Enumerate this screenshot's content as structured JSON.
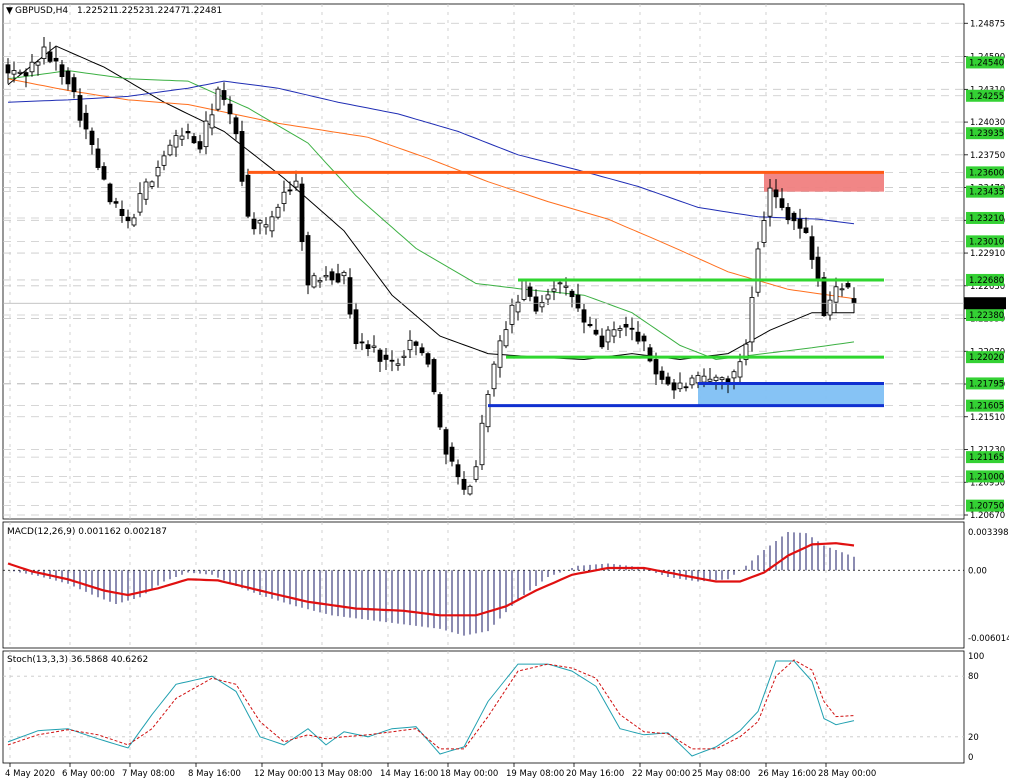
{
  "header": {
    "symbol": "GBPUSD,H4",
    "open": "1.22521",
    "high": "1.22523",
    "low": "1.22477",
    "close": "1.22481"
  },
  "colors": {
    "bull_candle": "#ffffff",
    "bear_candle": "#000000",
    "ma_black": "#000000",
    "ma_green": "#3cb043",
    "ma_orange": "#ff6f1e",
    "ma_blue": "#1f2db4",
    "resistance_line": "#ff5a14",
    "support_green": "#2fd62f",
    "support_blue": "#1030d0",
    "resistance_zone": "#f08080",
    "support_zone": "#80c0f4",
    "label_highlight": "#34d134",
    "macd_hist": "#1a1a66",
    "macd_signal": "#e01010",
    "stoch_main": "#20a0b0",
    "stoch_signal": "#d01010",
    "grid": "#c8c8c8"
  },
  "chart_data": [
    {
      "type": "candlestick",
      "pane": "price",
      "ylim": [
        1.2067,
        1.2492
      ],
      "y_ticks": [
        "1.24875",
        "1.24590",
        "1.24310",
        "1.24030",
        "1.23750",
        "1.23470",
        "1.23190",
        "1.22910",
        "1.22630",
        "1.22350",
        "1.22070",
        "1.21790",
        "1.21510",
        "1.21230",
        "1.20950",
        "1.20670"
      ],
      "highlighted_labels": [
        "1.24540",
        "1.24255",
        "1.23935",
        "1.23600",
        "1.23435",
        "1.23210",
        "1.23010",
        "1.22680",
        "1.22380",
        "1.22020",
        "1.21795",
        "1.21605",
        "1.21165",
        "1.21000",
        "1.20750"
      ],
      "current_price": "1.22481",
      "x_labels": [
        "4 May 2020",
        "6 May 00:00",
        "7 May 08:00",
        "8 May 16:00",
        "12 May 00:00",
        "13 May 08:00",
        "14 May 16:00",
        "18 May 00:00",
        "19 May 08:00",
        "20 May 16:00",
        "22 May 00:00",
        "25 May 08:00",
        "26 May 16:00",
        "28 May 00:00"
      ],
      "levels": [
        {
          "name": "resistance",
          "price": 1.236,
          "x_start_index": 40
        },
        {
          "name": "upper-green",
          "price": 1.2268,
          "x_start_index": 85
        },
        {
          "name": "lower-green",
          "price": 1.2202,
          "x_start_index": 83
        },
        {
          "name": "upper-blue",
          "price": 1.21795,
          "x_start_index": 115
        },
        {
          "name": "lower-blue",
          "price": 1.21605,
          "x_start_index": 80
        }
      ],
      "zones": [
        {
          "name": "resistance-zone",
          "low": 1.23435,
          "high": 1.236,
          "x_start_index": 126
        },
        {
          "name": "support-zone",
          "low": 1.21605,
          "high": 1.21795,
          "x_start_index": 115
        }
      ],
      "anchors": [
        [
          0,
          1.2444
        ],
        [
          3,
          1.2446
        ],
        [
          6,
          1.2463
        ],
        [
          10,
          1.2441
        ],
        [
          14,
          1.238
        ],
        [
          17,
          1.2335
        ],
        [
          20,
          1.2315
        ],
        [
          23,
          1.2348
        ],
        [
          26,
          1.2375
        ],
        [
          29,
          1.2395
        ],
        [
          32,
          1.2382
        ],
        [
          35,
          1.243
        ],
        [
          38,
          1.2395
        ],
        [
          40,
          1.232
        ],
        [
          43,
          1.231
        ],
        [
          46,
          1.2345
        ],
        [
          48,
          1.235
        ],
        [
          50,
          1.2262
        ],
        [
          53,
          1.2275
        ],
        [
          56,
          1.227
        ],
        [
          58,
          1.2215
        ],
        [
          61,
          1.2208
        ],
        [
          64,
          1.2195
        ],
        [
          67,
          1.2215
        ],
        [
          70,
          1.22
        ],
        [
          72,
          1.214
        ],
        [
          74,
          1.211
        ],
        [
          76,
          1.2085
        ],
        [
          78,
          1.211
        ],
        [
          80,
          1.2175
        ],
        [
          83,
          1.223
        ],
        [
          86,
          1.2262
        ],
        [
          88,
          1.2245
        ],
        [
          91,
          1.2265
        ],
        [
          94,
          1.2255
        ],
        [
          96,
          1.223
        ],
        [
          99,
          1.2215
        ],
        [
          102,
          1.223
        ],
        [
          105,
          1.222
        ],
        [
          108,
          1.219
        ],
        [
          111,
          1.2175
        ],
        [
          114,
          1.218
        ],
        [
          117,
          1.2182
        ],
        [
          121,
          1.2185
        ],
        [
          123,
          1.2215
        ],
        [
          125,
          1.23
        ],
        [
          127,
          1.2345
        ],
        [
          129,
          1.233
        ],
        [
          131,
          1.232
        ],
        [
          133,
          1.2305
        ],
        [
          135,
          1.227
        ],
        [
          136,
          1.2238
        ],
        [
          138,
          1.226
        ],
        [
          139,
          1.2265
        ],
        [
          141,
          1.225
        ]
      ],
      "moving_averages": [
        {
          "name": "ma-black",
          "points": [
            [
              0,
              1.2435
            ],
            [
              8,
              1.2468
            ],
            [
              16,
              1.245
            ],
            [
              26,
              1.242
            ],
            [
              36,
              1.2395
            ],
            [
              46,
              1.2355
            ],
            [
              56,
              1.231
            ],
            [
              64,
              1.2255
            ],
            [
              72,
              1.222
            ],
            [
              80,
              1.2205
            ],
            [
              88,
              1.2202
            ],
            [
              96,
              1.22
            ],
            [
              104,
              1.2205
            ],
            [
              112,
              1.22
            ],
            [
              120,
              1.2205
            ],
            [
              127,
              1.2225
            ],
            [
              134,
              1.224
            ],
            [
              141,
              1.224
            ]
          ]
        },
        {
          "name": "ma-green",
          "points": [
            [
              0,
              1.244
            ],
            [
              10,
              1.2447
            ],
            [
              20,
              1.244
            ],
            [
              30,
              1.2438
            ],
            [
              40,
              1.2415
            ],
            [
              50,
              1.2385
            ],
            [
              58,
              1.234
            ],
            [
              68,
              1.2295
            ],
            [
              78,
              1.2265
            ],
            [
              86,
              1.226
            ],
            [
              96,
              1.2255
            ],
            [
              104,
              1.224
            ],
            [
              112,
              1.2212
            ],
            [
              118,
              1.22
            ],
            [
              126,
              1.2205
            ],
            [
              134,
              1.221
            ],
            [
              141,
              1.2215
            ]
          ]
        },
        {
          "name": "ma-orange",
          "points": [
            [
              0,
              1.244
            ],
            [
              10,
              1.243
            ],
            [
              20,
              1.2422
            ],
            [
              30,
              1.2418
            ],
            [
              45,
              1.2402
            ],
            [
              60,
              1.239
            ],
            [
              70,
              1.2372
            ],
            [
              80,
              1.2352
            ],
            [
              90,
              1.2335
            ],
            [
              100,
              1.232
            ],
            [
              110,
              1.2298
            ],
            [
              120,
              1.2275
            ],
            [
              130,
              1.226
            ],
            [
              141,
              1.2252
            ]
          ]
        },
        {
          "name": "ma-blue",
          "points": [
            [
              0,
              1.242
            ],
            [
              10,
              1.2422
            ],
            [
              20,
              1.2425
            ],
            [
              30,
              1.2432
            ],
            [
              36,
              1.2438
            ],
            [
              45,
              1.2432
            ],
            [
              55,
              1.242
            ],
            [
              65,
              1.241
            ],
            [
              75,
              1.2395
            ],
            [
              85,
              1.2375
            ],
            [
              95,
              1.2362
            ],
            [
              105,
              1.2348
            ],
            [
              115,
              1.233
            ],
            [
              125,
              1.2322
            ],
            [
              135,
              1.232
            ],
            [
              141,
              1.2316
            ]
          ]
        }
      ]
    },
    {
      "type": "histogram+line",
      "pane": "macd",
      "title": "MACD(12,26,9) 0.001162 0.002187",
      "ylim": [
        -0.006014,
        0.003398
      ],
      "y_ticks": [
        "0.003398",
        "0.00",
        "-0.006014"
      ],
      "hist_anchors": [
        [
          0,
          0.0
        ],
        [
          5,
          -0.0005
        ],
        [
          10,
          -0.0012
        ],
        [
          15,
          -0.0024
        ],
        [
          18,
          -0.003
        ],
        [
          22,
          -0.0024
        ],
        [
          26,
          -0.001
        ],
        [
          30,
          -0.0002
        ],
        [
          34,
          -0.0004
        ],
        [
          38,
          -0.0014
        ],
        [
          42,
          -0.0022
        ],
        [
          48,
          -0.0032
        ],
        [
          54,
          -0.004
        ],
        [
          60,
          -0.0044
        ],
        [
          66,
          -0.0048
        ],
        [
          72,
          -0.0052
        ],
        [
          76,
          -0.0058
        ],
        [
          80,
          -0.0054
        ],
        [
          85,
          -0.0026
        ],
        [
          90,
          -0.0006
        ],
        [
          95,
          0.0004
        ],
        [
          100,
          0.0006
        ],
        [
          105,
          0.0003
        ],
        [
          110,
          -0.0006
        ],
        [
          115,
          -0.001
        ],
        [
          120,
          -0.0008
        ],
        [
          123,
          0.0004
        ],
        [
          126,
          0.0018
        ],
        [
          130,
          0.0034
        ],
        [
          133,
          0.0033
        ],
        [
          136,
          0.0022
        ],
        [
          141,
          0.0012
        ]
      ],
      "signal_anchors": [
        [
          0,
          0.0006
        ],
        [
          4,
          -0.0001
        ],
        [
          10,
          -0.0008
        ],
        [
          16,
          -0.0018
        ],
        [
          20,
          -0.0022
        ],
        [
          25,
          -0.0016
        ],
        [
          30,
          -0.0008
        ],
        [
          35,
          -0.0009
        ],
        [
          42,
          -0.0018
        ],
        [
          50,
          -0.0028
        ],
        [
          58,
          -0.0034
        ],
        [
          66,
          -0.0036
        ],
        [
          72,
          -0.004
        ],
        [
          78,
          -0.004
        ],
        [
          83,
          -0.0032
        ],
        [
          88,
          -0.0018
        ],
        [
          94,
          -0.0004
        ],
        [
          100,
          0.0002
        ],
        [
          106,
          0.0002
        ],
        [
          112,
          -0.0004
        ],
        [
          118,
          -0.001
        ],
        [
          122,
          -0.001
        ],
        [
          126,
          -0.0002
        ],
        [
          130,
          0.0013
        ],
        [
          134,
          0.0023
        ],
        [
          138,
          0.0024
        ],
        [
          141,
          0.0022
        ]
      ]
    },
    {
      "type": "line",
      "pane": "stochastic",
      "title": "Stoch(13,3,3) 36.5868 40.6262",
      "ylim": [
        0,
        100
      ],
      "y_ticks": [
        "100",
        "80",
        "20",
        "0"
      ],
      "main_anchors": [
        [
          0,
          15
        ],
        [
          5,
          26
        ],
        [
          10,
          28
        ],
        [
          15,
          18
        ],
        [
          20,
          9
        ],
        [
          24,
          42
        ],
        [
          28,
          72
        ],
        [
          34,
          80
        ],
        [
          38,
          65
        ],
        [
          42,
          20
        ],
        [
          46,
          12
        ],
        [
          50,
          28
        ],
        [
          53,
          12
        ],
        [
          56,
          25
        ],
        [
          60,
          20
        ],
        [
          64,
          28
        ],
        [
          68,
          30
        ],
        [
          72,
          3
        ],
        [
          76,
          10
        ],
        [
          80,
          55
        ],
        [
          85,
          92
        ],
        [
          90,
          92
        ],
        [
          94,
          85
        ],
        [
          98,
          70
        ],
        [
          102,
          28
        ],
        [
          106,
          22
        ],
        [
          110,
          24
        ],
        [
          114,
          1
        ],
        [
          118,
          10
        ],
        [
          122,
          26
        ],
        [
          125,
          45
        ],
        [
          128,
          95
        ],
        [
          131,
          95
        ],
        [
          134,
          75
        ],
        [
          136,
          38
        ],
        [
          138,
          32
        ],
        [
          141,
          36
        ]
      ],
      "signal_anchors": [
        [
          0,
          12
        ],
        [
          5,
          22
        ],
        [
          10,
          27
        ],
        [
          15,
          22
        ],
        [
          20,
          12
        ],
        [
          24,
          28
        ],
        [
          28,
          58
        ],
        [
          34,
          78
        ],
        [
          38,
          72
        ],
        [
          42,
          35
        ],
        [
          46,
          15
        ],
        [
          50,
          22
        ],
        [
          53,
          18
        ],
        [
          56,
          20
        ],
        [
          60,
          22
        ],
        [
          64,
          25
        ],
        [
          68,
          28
        ],
        [
          72,
          8
        ],
        [
          76,
          8
        ],
        [
          80,
          40
        ],
        [
          85,
          85
        ],
        [
          90,
          92
        ],
        [
          94,
          88
        ],
        [
          98,
          78
        ],
        [
          102,
          42
        ],
        [
          106,
          25
        ],
        [
          110,
          23
        ],
        [
          114,
          8
        ],
        [
          118,
          8
        ],
        [
          122,
          20
        ],
        [
          125,
          35
        ],
        [
          128,
          80
        ],
        [
          131,
          96
        ],
        [
          134,
          86
        ],
        [
          136,
          55
        ],
        [
          138,
          40
        ],
        [
          141,
          41
        ]
      ]
    }
  ]
}
